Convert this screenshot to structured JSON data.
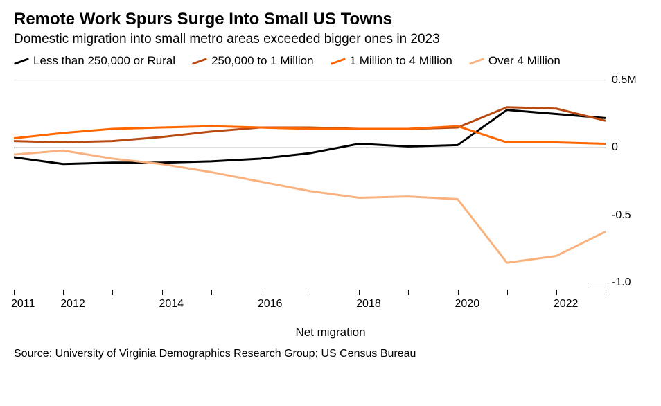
{
  "title": "Remote Work Spurs Surge Into Small US Towns",
  "subtitle": "Domestic migration into small metro areas exceeded bigger ones in 2023",
  "legend": [
    {
      "label": "Less than 250,000 or Rural",
      "color": "#000000"
    },
    {
      "label": "250,000 to 1 Million",
      "color": "#b84a12"
    },
    {
      "label": "1 Million to 4 Million",
      "color": "#ff6600"
    },
    {
      "label": "Over 4 Million",
      "color": "#f9b27f"
    }
  ],
  "chart": {
    "type": "line",
    "background_color": "#ffffff",
    "zero_line_color": "#000000",
    "gridline_color": "#dcdcdc",
    "line_width": 3,
    "x_title": "Net migration",
    "xlim": [
      2011,
      2023
    ],
    "ylim": [
      -1.1,
      0.55
    ],
    "y_ticks": [
      {
        "value": 0.5,
        "label": "0.5M",
        "gridline": true
      },
      {
        "value": 0,
        "label": "0",
        "zero": true
      },
      {
        "value": -0.5,
        "label": "-0.5"
      },
      {
        "value": -1.0,
        "label": "-1.0",
        "short_line": true
      }
    ],
    "x_ticks": [
      2011,
      2012,
      2014,
      2016,
      2018,
      2020,
      2022
    ],
    "x_minor_ticks": [
      2013,
      2015,
      2017,
      2019,
      2021,
      2023
    ],
    "years": [
      2011,
      2012,
      2013,
      2014,
      2015,
      2016,
      2017,
      2018,
      2019,
      2020,
      2021,
      2022,
      2023
    ],
    "series": [
      {
        "name": "Less than 250,000 or Rural",
        "color": "#000000",
        "values": [
          -0.07,
          -0.12,
          -0.11,
          -0.11,
          -0.1,
          -0.08,
          -0.04,
          0.03,
          0.01,
          0.02,
          0.28,
          0.25,
          0.22
        ]
      },
      {
        "name": "250,000 to 1 Million",
        "color": "#b84a12",
        "values": [
          0.05,
          0.04,
          0.05,
          0.08,
          0.12,
          0.15,
          0.15,
          0.14,
          0.14,
          0.15,
          0.3,
          0.29,
          0.2
        ]
      },
      {
        "name": "1 Million to 4 Million",
        "color": "#ff6600",
        "values": [
          0.07,
          0.11,
          0.14,
          0.15,
          0.16,
          0.15,
          0.14,
          0.14,
          0.14,
          0.16,
          0.04,
          0.04,
          0.03
        ]
      },
      {
        "name": "Over 4 Million",
        "color": "#f9b27f",
        "values": [
          -0.05,
          -0.02,
          -0.08,
          -0.12,
          -0.18,
          -0.25,
          -0.32,
          -0.37,
          -0.36,
          -0.38,
          -0.85,
          -0.8,
          -0.62
        ]
      }
    ]
  },
  "source": "Source: University of Virginia Demographics Research Group; US Census Bureau"
}
